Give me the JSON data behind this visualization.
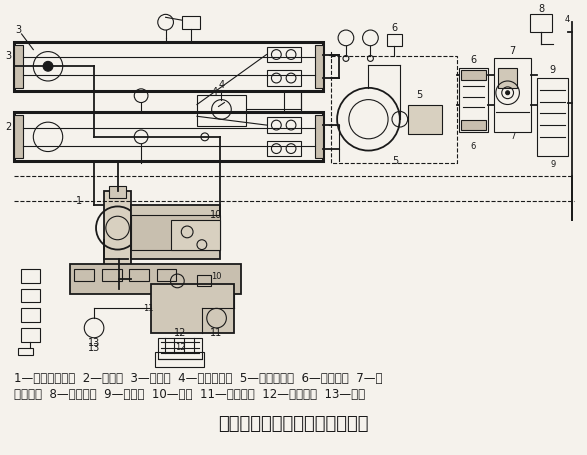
{
  "title": "离心式冷水机组制冷系统示意图",
  "legend_line1": "1—离心式压缩机  2—蒸发器  3—冷凝器  4—高压浮球阀  5—小型压缩机  6—油分离器  7—气",
  "legend_line2": "液分离器  8—放空气阀  9—干燥器  10—油筱  11—油过滤器  12—油冷却器  13—油泵",
  "bg_color": "#f5f2ec",
  "line_color": "#1a1a1a",
  "text_color": "#1a1a1a",
  "title_fontsize": 13,
  "legend_fontsize": 8.5,
  "fig_width": 5.87,
  "fig_height": 4.55,
  "dpi": 100
}
